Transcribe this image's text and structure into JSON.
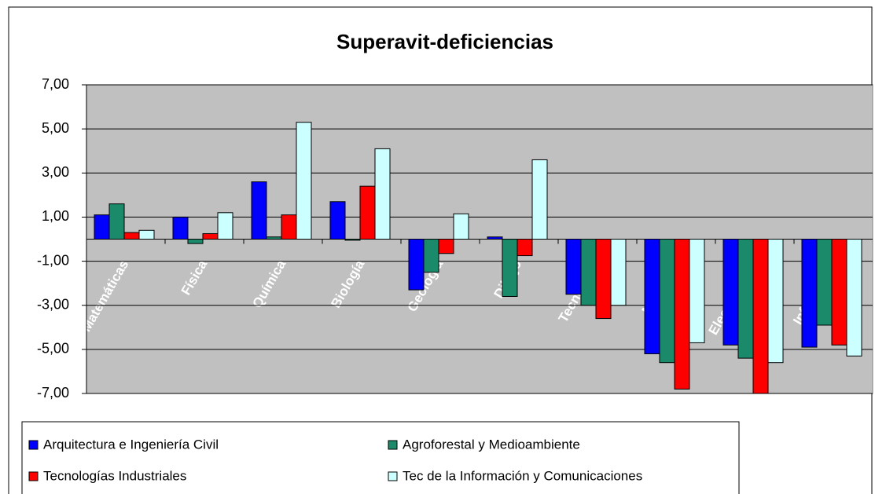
{
  "chart_data": {
    "type": "bar",
    "title": "Superavit-deficiencias",
    "categories": [
      "Matemáticas",
      "Física",
      "Química",
      "Biología",
      "Geología",
      "Dibujo",
      "Tecnología",
      "Mecánica",
      "Electrotecnia",
      "Informática"
    ],
    "series": [
      {
        "name": "Arquitectura e Ingeniería Civil",
        "color": "#0000ff",
        "values": [
          1.1,
          1.0,
          2.6,
          1.7,
          -2.3,
          0.1,
          -2.5,
          -5.2,
          -4.8,
          -4.9
        ]
      },
      {
        "name": "Agroforestal y Medioambiente",
        "color": "#1a8a6a",
        "values": [
          1.6,
          -0.2,
          0.1,
          -0.05,
          -1.5,
          -2.6,
          -3.0,
          -5.6,
          -5.4,
          -3.9
        ]
      },
      {
        "name": "Tecnologías Industriales",
        "color": "#ff0000",
        "values": [
          0.3,
          0.25,
          1.1,
          2.4,
          -0.65,
          -0.75,
          -3.6,
          -6.8,
          -7.0,
          -4.8
        ]
      },
      {
        "name": "Tec de la Información y Comunicaciones",
        "color": "#ccffff",
        "values": [
          0.4,
          1.2,
          5.3,
          4.1,
          1.15,
          3.6,
          -3.0,
          -4.7,
          -5.6,
          -5.3
        ]
      }
    ],
    "ylim": [
      -7,
      7
    ],
    "yticks": [
      {
        "value": 7,
        "label": "7,00"
      },
      {
        "value": 5,
        "label": "5,00"
      },
      {
        "value": 3,
        "label": "3,00"
      },
      {
        "value": 1,
        "label": "1,00"
      },
      {
        "value": -1,
        "label": "-1,00"
      },
      {
        "value": -3,
        "label": "-3,00"
      },
      {
        "value": -5,
        "label": "-5,00"
      },
      {
        "value": -7,
        "label": "-7,00"
      }
    ],
    "grid": true
  }
}
